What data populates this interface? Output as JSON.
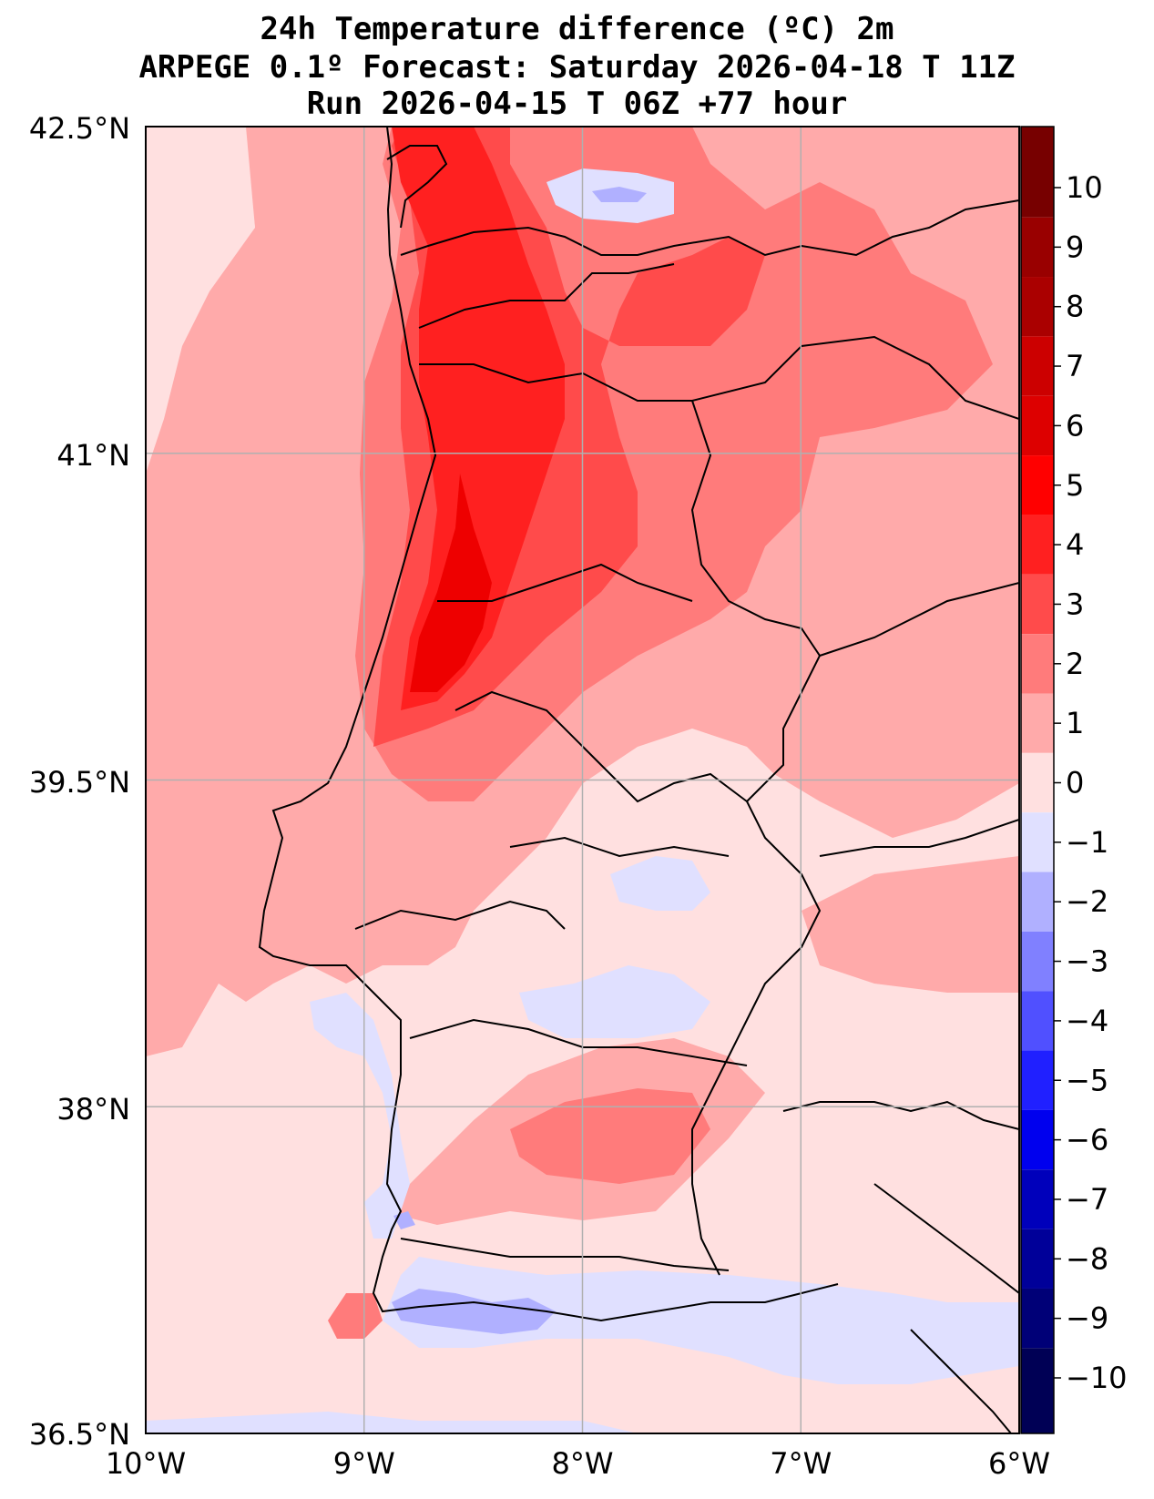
{
  "title": {
    "line1": "24h Temperature difference (ºC) 2m",
    "line2": "ARPEGE 0.1º Forecast: Saturday 2026-04-18 T 11Z",
    "line3": "Run 2026-04-15 T 06Z +77 hour"
  },
  "map": {
    "lon_range": [
      -10,
      -6
    ],
    "lat_range": [
      36.5,
      42.5
    ],
    "lon_ticks": [
      "10°W",
      "9°W",
      "8°W",
      "7°W",
      "6°W"
    ],
    "lat_ticks": [
      "42.5°N",
      "41°N",
      "39.5°N",
      "38°N",
      "36.5°N"
    ],
    "grid": true
  },
  "colorbar": {
    "ticks": [
      "10",
      "9",
      "8",
      "7",
      "6",
      "5",
      "4",
      "3",
      "2",
      "1",
      "0",
      "−1",
      "−2",
      "−3",
      "−4",
      "−5",
      "−6",
      "−7",
      "−8",
      "−9",
      "−10"
    ],
    "colors_top_to_bottom": [
      "#770000",
      "#990000",
      "#aa0000",
      "#cc0000",
      "#dd0000",
      "#ff0000",
      "#ff2020",
      "#ff4b4b",
      "#ff7b7b",
      "#ffaaaa",
      "#ffe0e0",
      "#e0e0ff",
      "#b0b0ff",
      "#8080ff",
      "#5050ff",
      "#2020ff",
      "#0000ee",
      "#0000bb",
      "#000099",
      "#000077",
      "#000055"
    ]
  },
  "chart_data": {
    "type": "heatmap",
    "variable": "24h Temperature difference (ºC) 2m",
    "levels": [
      -10,
      -9,
      -8,
      -7,
      -6,
      -5,
      -4,
      -3,
      -2,
      -1,
      0,
      1,
      2,
      3,
      4,
      5,
      6,
      7,
      8,
      9,
      10
    ],
    "regions": [
      {
        "area": "Atlantic west of Portugal",
        "value_range": [
          1,
          2
        ]
      },
      {
        "area": "Northwest coast Portugal (Porto–Aveiro)",
        "value_range": [
          4,
          6
        ]
      },
      {
        "area": "North-east Portugal / Spain border",
        "value_range": [
          2,
          4
        ]
      },
      {
        "area": "Central Portugal",
        "value_range": [
          1,
          3
        ]
      },
      {
        "area": "Alentejo",
        "value_range": [
          0,
          2
        ]
      },
      {
        "area": "Algarve and south coast",
        "value_range": [
          -2,
          0
        ]
      }
    ]
  }
}
